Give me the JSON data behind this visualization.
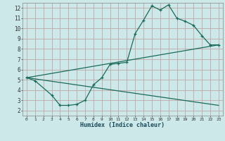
{
  "xlabel": "Humidex (Indice chaleur)",
  "ylabel": "",
  "bg_color": "#cce8e8",
  "grid_color": "#c0a8a8",
  "line_color": "#1a6a5a",
  "xlim": [
    -0.5,
    23.5
  ],
  "ylim": [
    1.5,
    12.5
  ],
  "xticks": [
    0,
    1,
    2,
    3,
    4,
    5,
    6,
    7,
    8,
    9,
    10,
    11,
    12,
    13,
    14,
    15,
    16,
    17,
    18,
    19,
    20,
    21,
    22,
    23
  ],
  "yticks": [
    2,
    3,
    4,
    5,
    6,
    7,
    8,
    9,
    10,
    11,
    12
  ],
  "line1_x": [
    0,
    1,
    3,
    4,
    5,
    6,
    7,
    8,
    9,
    10,
    11,
    12,
    13,
    14,
    15,
    16,
    17,
    18,
    19,
    20,
    21,
    22,
    23
  ],
  "line1_y": [
    5.2,
    4.9,
    3.5,
    2.5,
    2.5,
    2.6,
    3.0,
    4.5,
    5.2,
    6.5,
    6.6,
    6.7,
    9.5,
    10.8,
    12.2,
    11.8,
    12.3,
    11.0,
    10.7,
    10.3,
    9.3,
    8.4,
    8.4
  ],
  "line2_x": [
    0,
    23
  ],
  "line2_y": [
    5.2,
    8.4
  ],
  "line3_x": [
    0,
    23
  ],
  "line3_y": [
    5.2,
    2.5
  ]
}
